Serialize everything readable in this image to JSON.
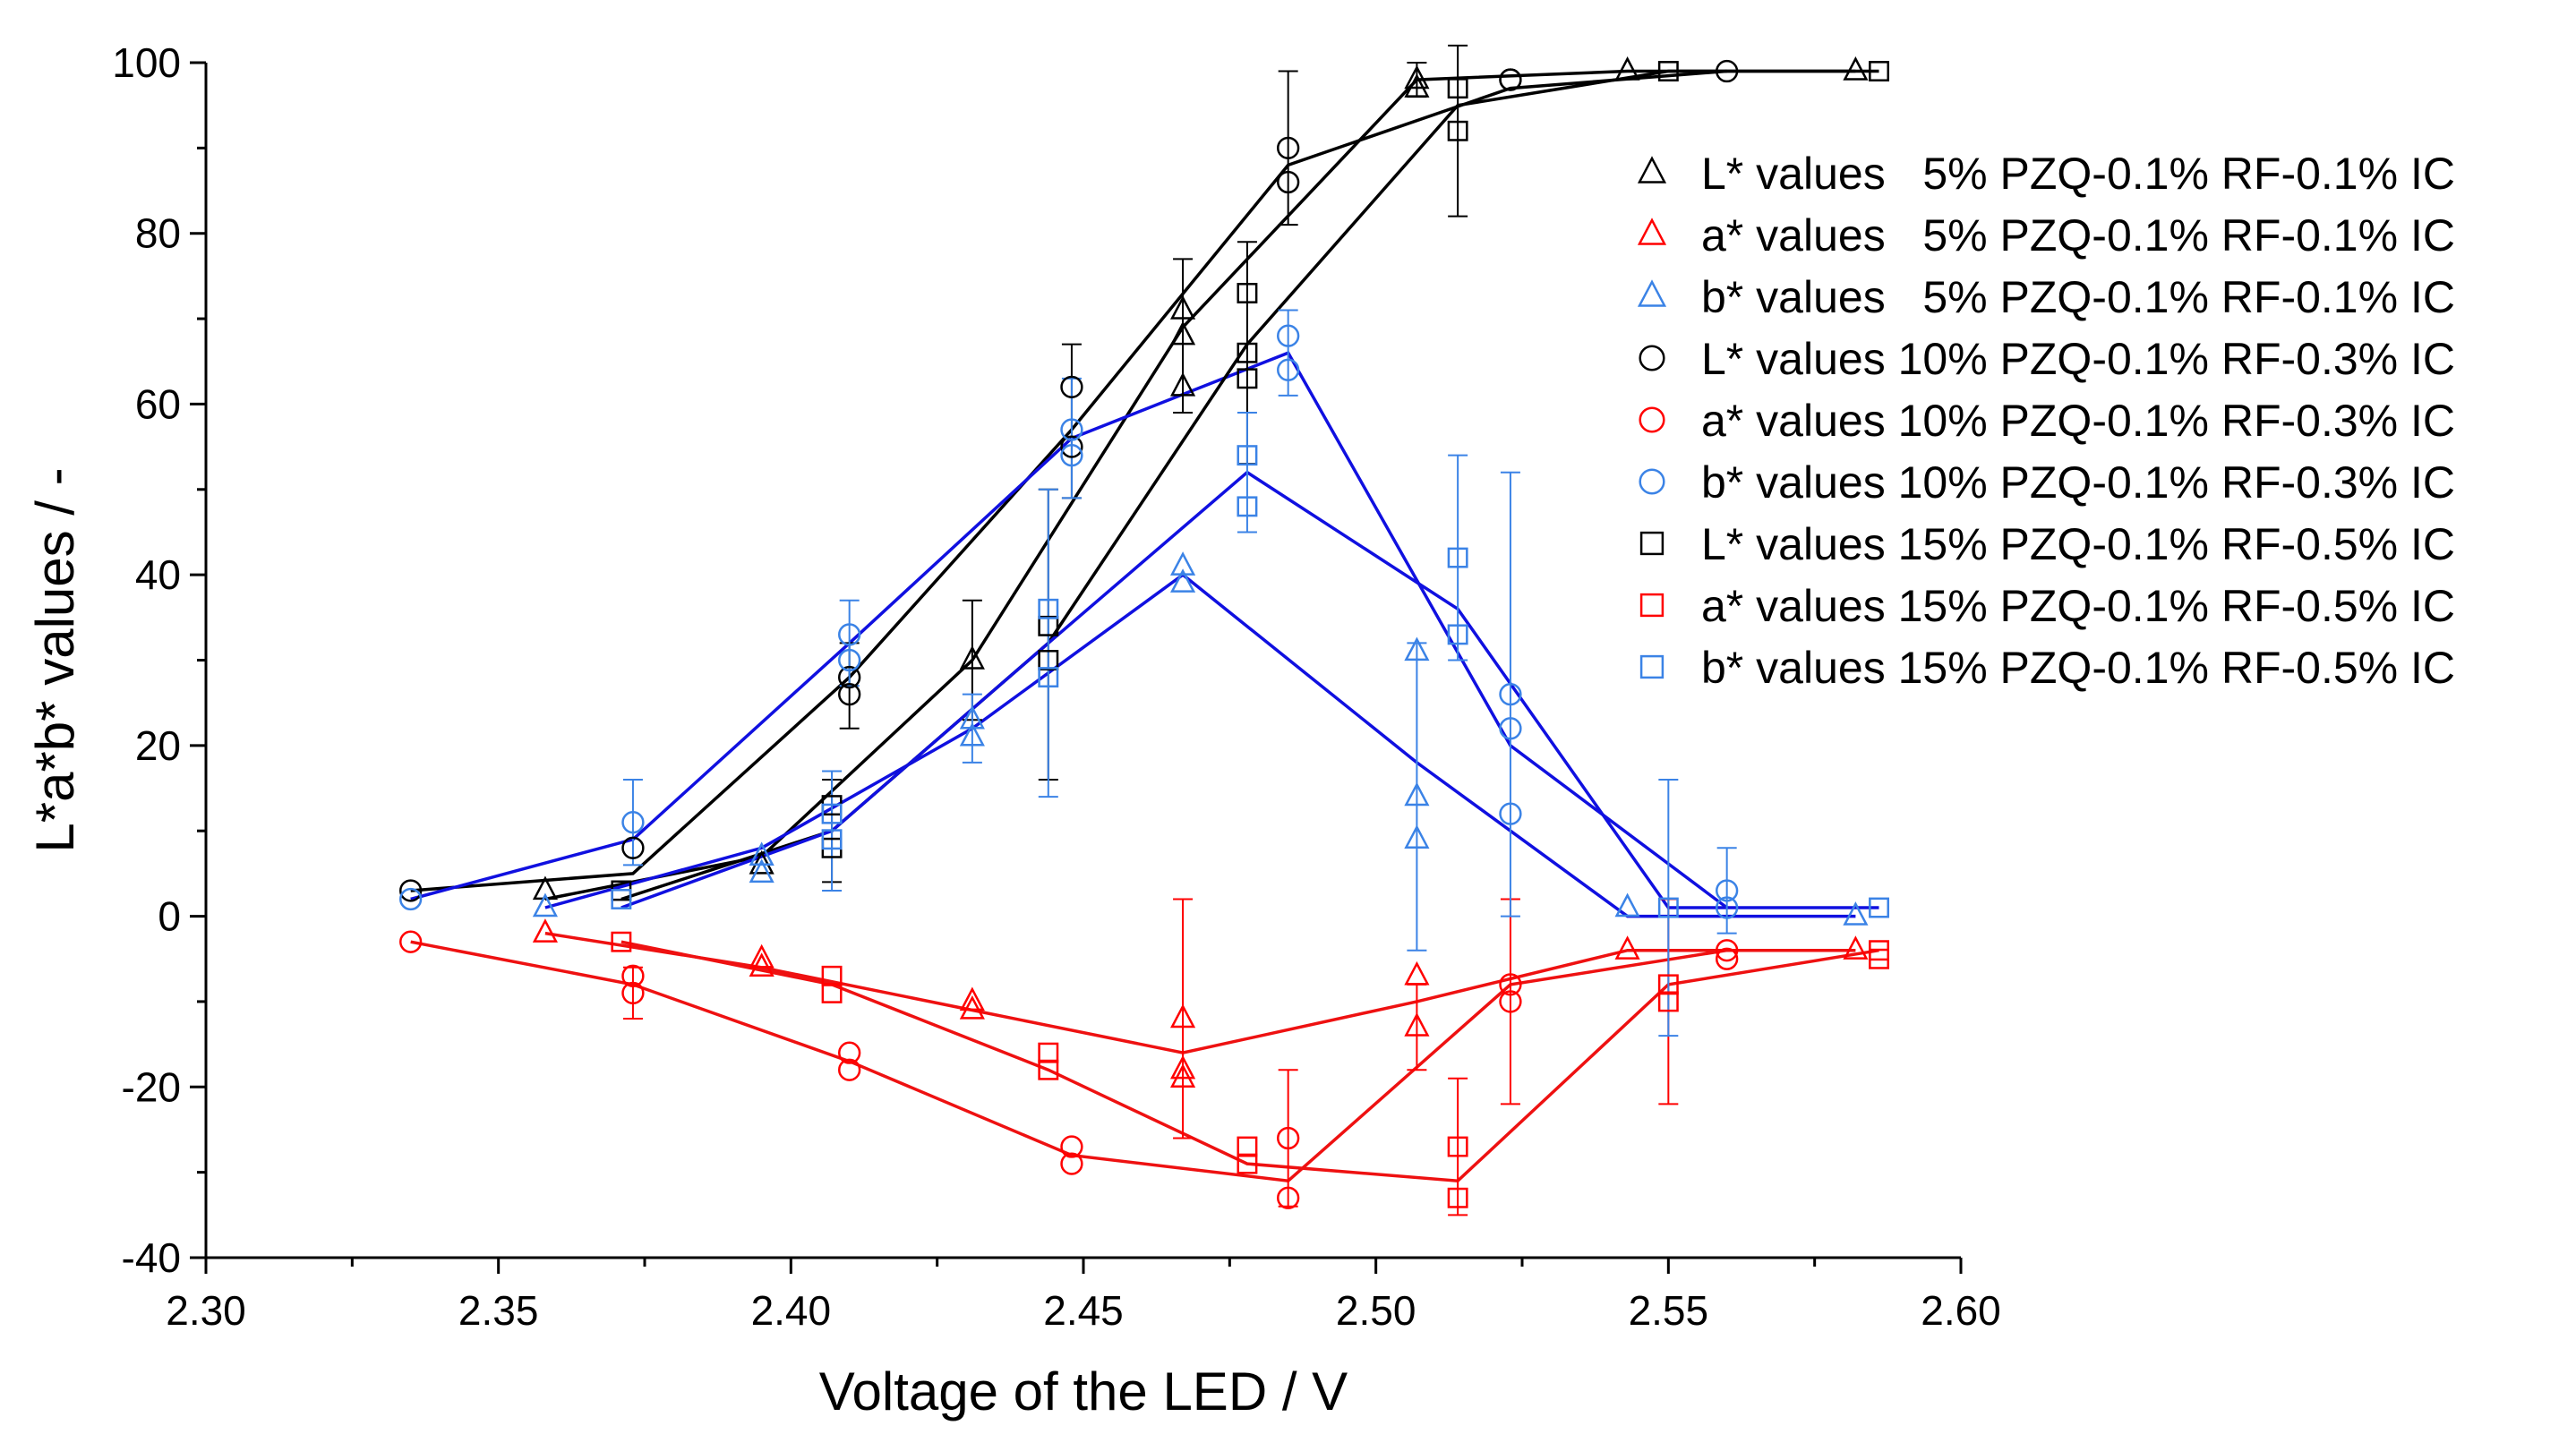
{
  "chart_data": {
    "type": "scatter",
    "title": "",
    "xlabel": "Voltage of the LED / V",
    "ylabel": "L*a*b* values / -",
    "xlim": [
      2.3,
      2.6
    ],
    "ylim": [
      -40,
      100
    ],
    "xticks": [
      2.3,
      2.35,
      2.4,
      2.45,
      2.5,
      2.55,
      2.6
    ],
    "xtick_labels": [
      "2.30",
      "2.35",
      "2.40",
      "2.45",
      "2.50",
      "2.55",
      "2.60"
    ],
    "yticks": [
      -40,
      -20,
      0,
      20,
      40,
      60,
      80,
      100
    ],
    "ytick_labels": [
      "-40",
      "-20",
      "0",
      "20",
      "40",
      "60",
      "80",
      "100"
    ],
    "grid": false,
    "legend_position": "top-right",
    "colors": {
      "L": "#000000",
      "a": "#ff0000",
      "b": "#3b83e6",
      "fit_b": "#1010e0",
      "fit_a": "#ee1111"
    },
    "series": [
      {
        "name": "L* values   5% PZQ-0.1% RF-0.1% IC",
        "marker": "triangle",
        "color_key": "L",
        "points": [
          [
            2.358,
            3
          ],
          [
            2.395,
            6
          ],
          [
            2.431,
            30
          ],
          [
            2.467,
            62
          ],
          [
            2.467,
            68
          ],
          [
            2.467,
            71
          ],
          [
            2.507,
            97
          ],
          [
            2.507,
            98
          ],
          [
            2.543,
            99
          ],
          [
            2.582,
            99
          ]
        ],
        "errors": [
          [
            2.431,
            30,
            7
          ],
          [
            2.467,
            68,
            9
          ],
          [
            2.507,
            98,
            2
          ]
        ],
        "fit": [
          [
            2.358,
            2
          ],
          [
            2.395,
            7
          ],
          [
            2.431,
            30
          ],
          [
            2.467,
            69
          ],
          [
            2.507,
            98
          ],
          [
            2.543,
            99
          ],
          [
            2.582,
            99
          ]
        ]
      },
      {
        "name": "a* values   5% PZQ-0.1% RF-0.1% IC",
        "marker": "triangle",
        "color_key": "a",
        "points": [
          [
            2.358,
            -2
          ],
          [
            2.395,
            -5
          ],
          [
            2.395,
            -6
          ],
          [
            2.431,
            -10
          ],
          [
            2.431,
            -11
          ],
          [
            2.467,
            -12
          ],
          [
            2.467,
            -18
          ],
          [
            2.467,
            -19
          ],
          [
            2.507,
            -7
          ],
          [
            2.507,
            -13
          ],
          [
            2.543,
            -4
          ],
          [
            2.582,
            -4
          ]
        ],
        "errors": [
          [
            2.467,
            -12,
            14
          ],
          [
            2.507,
            -13,
            5
          ]
        ],
        "fit": [
          [
            2.358,
            -2
          ],
          [
            2.395,
            -6
          ],
          [
            2.431,
            -11
          ],
          [
            2.467,
            -16
          ],
          [
            2.507,
            -10
          ],
          [
            2.543,
            -4
          ],
          [
            2.582,
            -4
          ]
        ]
      },
      {
        "name": "b* values   5% PZQ-0.1% RF-0.1% IC",
        "marker": "triangle",
        "color_key": "b",
        "points": [
          [
            2.358,
            1
          ],
          [
            2.395,
            5
          ],
          [
            2.395,
            7
          ],
          [
            2.431,
            21
          ],
          [
            2.431,
            23
          ],
          [
            2.467,
            39
          ],
          [
            2.467,
            41
          ],
          [
            2.507,
            9
          ],
          [
            2.507,
            14
          ],
          [
            2.507,
            31
          ],
          [
            2.543,
            1
          ],
          [
            2.582,
            0
          ]
        ],
        "errors": [
          [
            2.431,
            22,
            4
          ],
          [
            2.507,
            14,
            18
          ]
        ],
        "fit": [
          [
            2.358,
            1
          ],
          [
            2.395,
            8
          ],
          [
            2.431,
            22
          ],
          [
            2.467,
            40
          ],
          [
            2.507,
            18
          ],
          [
            2.543,
            0
          ],
          [
            2.582,
            0
          ]
        ]
      },
      {
        "name": "L* values 10% PZQ-0.1% RF-0.3% IC",
        "marker": "circle",
        "color_key": "L",
        "points": [
          [
            2.335,
            3
          ],
          [
            2.373,
            8
          ],
          [
            2.41,
            26
          ],
          [
            2.41,
            28
          ],
          [
            2.448,
            55
          ],
          [
            2.448,
            62
          ],
          [
            2.485,
            86
          ],
          [
            2.485,
            90
          ],
          [
            2.523,
            98
          ],
          [
            2.523,
            98
          ],
          [
            2.56,
            99
          ]
        ],
        "errors": [
          [
            2.41,
            27,
            5
          ],
          [
            2.448,
            58,
            9
          ],
          [
            2.485,
            90,
            9
          ]
        ],
        "fit": [
          [
            2.335,
            3
          ],
          [
            2.373,
            5
          ],
          [
            2.41,
            28
          ],
          [
            2.448,
            57
          ],
          [
            2.485,
            88
          ],
          [
            2.523,
            97
          ],
          [
            2.56,
            99
          ]
        ]
      },
      {
        "name": "a* values 10% PZQ-0.1% RF-0.3% IC",
        "marker": "circle",
        "color_key": "a",
        "points": [
          [
            2.335,
            -3
          ],
          [
            2.373,
            -7
          ],
          [
            2.373,
            -9
          ],
          [
            2.41,
            -16
          ],
          [
            2.41,
            -18
          ],
          [
            2.448,
            -27
          ],
          [
            2.448,
            -29
          ],
          [
            2.485,
            -26
          ],
          [
            2.485,
            -33
          ],
          [
            2.523,
            -8
          ],
          [
            2.523,
            -10
          ],
          [
            2.56,
            -4
          ],
          [
            2.56,
            -5
          ]
        ],
        "errors": [
          [
            2.373,
            -9,
            3
          ],
          [
            2.485,
            -26,
            8
          ],
          [
            2.523,
            -10,
            12
          ]
        ],
        "fit": [
          [
            2.335,
            -3
          ],
          [
            2.373,
            -8
          ],
          [
            2.41,
            -17
          ],
          [
            2.448,
            -28
          ],
          [
            2.485,
            -31
          ],
          [
            2.523,
            -8
          ],
          [
            2.56,
            -4
          ]
        ]
      },
      {
        "name": "b* values 10% PZQ-0.1% RF-0.3% IC",
        "marker": "circle",
        "color_key": "b",
        "points": [
          [
            2.335,
            2
          ],
          [
            2.373,
            11
          ],
          [
            2.41,
            30
          ],
          [
            2.41,
            33
          ],
          [
            2.448,
            54
          ],
          [
            2.448,
            57
          ],
          [
            2.485,
            64
          ],
          [
            2.485,
            68
          ],
          [
            2.523,
            12
          ],
          [
            2.523,
            22
          ],
          [
            2.523,
            26
          ],
          [
            2.56,
            1
          ],
          [
            2.56,
            3
          ]
        ],
        "errors": [
          [
            2.373,
            11,
            5
          ],
          [
            2.41,
            32,
            5
          ],
          [
            2.448,
            56,
            7
          ],
          [
            2.485,
            66,
            5
          ],
          [
            2.523,
            26,
            26
          ],
          [
            2.56,
            3,
            5
          ]
        ],
        "fit": [
          [
            2.335,
            2
          ],
          [
            2.373,
            9
          ],
          [
            2.41,
            32
          ],
          [
            2.448,
            56
          ],
          [
            2.485,
            66
          ],
          [
            2.523,
            20
          ],
          [
            2.56,
            1
          ]
        ]
      },
      {
        "name": "L* values 15% PZQ-0.1% RF-0.5% IC",
        "marker": "square",
        "color_key": "L",
        "points": [
          [
            2.371,
            3
          ],
          [
            2.407,
            8
          ],
          [
            2.407,
            13
          ],
          [
            2.444,
            30
          ],
          [
            2.444,
            34
          ],
          [
            2.478,
            63
          ],
          [
            2.478,
            66
          ],
          [
            2.478,
            73
          ],
          [
            2.514,
            92
          ],
          [
            2.514,
            97
          ],
          [
            2.55,
            99
          ],
          [
            2.586,
            99
          ]
        ],
        "errors": [
          [
            2.407,
            10,
            6
          ],
          [
            2.444,
            33,
            17
          ],
          [
            2.478,
            66,
            13
          ],
          [
            2.514,
            92,
            10
          ]
        ],
        "fit": [
          [
            2.371,
            2
          ],
          [
            2.407,
            10
          ],
          [
            2.444,
            32
          ],
          [
            2.478,
            67
          ],
          [
            2.514,
            95
          ],
          [
            2.55,
            99
          ],
          [
            2.586,
            99
          ]
        ]
      },
      {
        "name": "a* values 15% PZQ-0.1% RF-0.5% IC",
        "marker": "square",
        "color_key": "a",
        "points": [
          [
            2.371,
            -3
          ],
          [
            2.407,
            -7
          ],
          [
            2.407,
            -9
          ],
          [
            2.444,
            -16
          ],
          [
            2.444,
            -18
          ],
          [
            2.478,
            -27
          ],
          [
            2.478,
            -29
          ],
          [
            2.514,
            -27
          ],
          [
            2.514,
            -33
          ],
          [
            2.55,
            -8
          ],
          [
            2.55,
            -10
          ],
          [
            2.586,
            -4
          ],
          [
            2.586,
            -5
          ]
        ],
        "errors": [
          [
            2.514,
            -27,
            8
          ],
          [
            2.55,
            -10,
            12
          ]
        ],
        "fit": [
          [
            2.371,
            -3
          ],
          [
            2.407,
            -8
          ],
          [
            2.444,
            -18
          ],
          [
            2.478,
            -29
          ],
          [
            2.514,
            -31
          ],
          [
            2.55,
            -8
          ],
          [
            2.586,
            -4
          ]
        ]
      },
      {
        "name": "b* values 15% PZQ-0.1% RF-0.5% IC",
        "marker": "square",
        "color_key": "b",
        "points": [
          [
            2.371,
            2
          ],
          [
            2.407,
            9
          ],
          [
            2.407,
            12
          ],
          [
            2.444,
            28
          ],
          [
            2.444,
            36
          ],
          [
            2.478,
            48
          ],
          [
            2.478,
            54
          ],
          [
            2.514,
            33
          ],
          [
            2.514,
            42
          ],
          [
            2.55,
            1
          ],
          [
            2.586,
            1
          ]
        ],
        "errors": [
          [
            2.407,
            10,
            7
          ],
          [
            2.444,
            32,
            18
          ],
          [
            2.478,
            52,
            7
          ],
          [
            2.514,
            42,
            12
          ],
          [
            2.55,
            1,
            15
          ]
        ],
        "fit": [
          [
            2.371,
            1
          ],
          [
            2.407,
            10
          ],
          [
            2.444,
            32
          ],
          [
            2.478,
            52
          ],
          [
            2.514,
            36
          ],
          [
            2.55,
            1
          ],
          [
            2.586,
            1
          ]
        ]
      }
    ]
  }
}
